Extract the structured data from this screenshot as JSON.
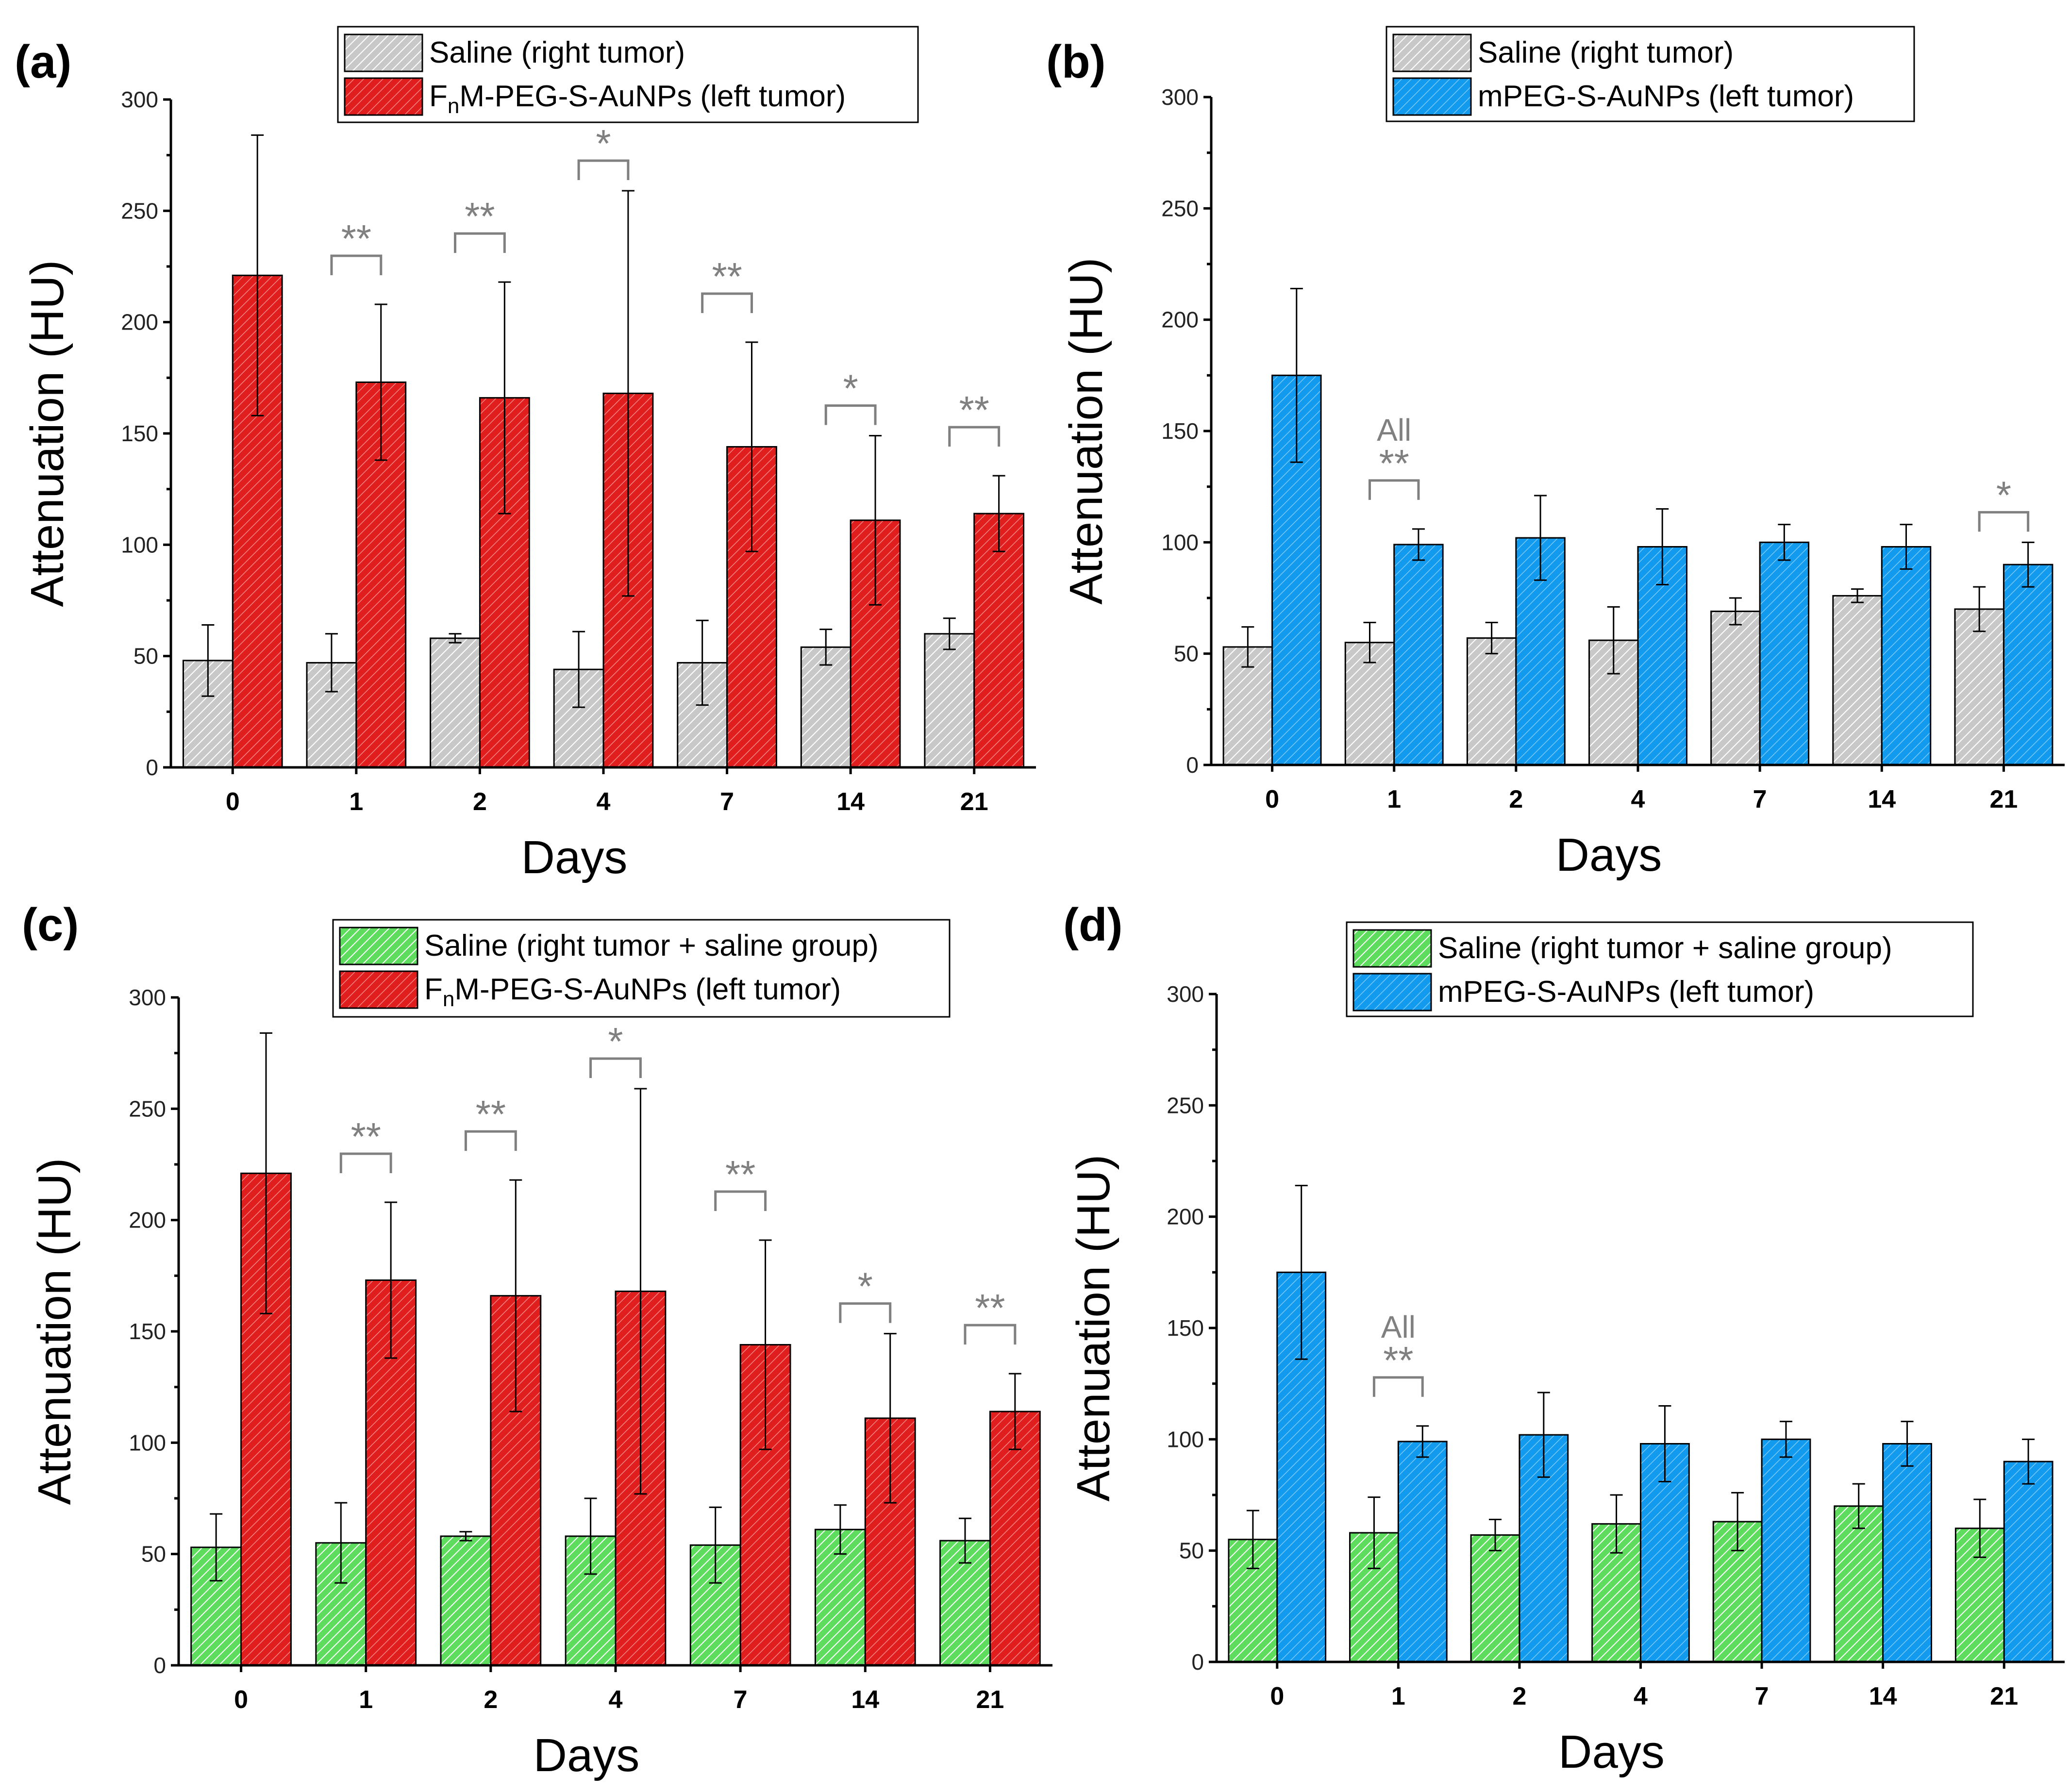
{
  "figure": {
    "description_colors": {
      "saline_gray": "#c8c8c8",
      "saline_green": "#5ddc5d",
      "red": "#e11e1e",
      "blue": "#129aee",
      "sig_gray": "#808080"
    }
  },
  "chart_data": [
    {
      "panel": "(a)",
      "type": "bar",
      "xlabel": "Days",
      "ylabel": "Attenuation (HU)",
      "ylim": [
        0,
        300
      ],
      "yticks": [
        0,
        50,
        100,
        150,
        200,
        250,
        300
      ],
      "categories": [
        "0",
        "1",
        "2",
        "4",
        "7",
        "14",
        "21"
      ],
      "series": [
        {
          "name": "Saline (right tumor)",
          "legend_main": "Saline (right tumor)",
          "legend_sub": "",
          "legend_rest": "",
          "color": "#c8c8c8",
          "pattern": "gray",
          "values": [
            48,
            47,
            58,
            44,
            47,
            54,
            60
          ],
          "errors": [
            16,
            13,
            2,
            17,
            19,
            8,
            7
          ]
        },
        {
          "name": "FnM-PEG-S-AuNPs (left tumor)",
          "legend_main": "F",
          "legend_sub": "n",
          "legend_rest": "M-PEG-S-AuNPs (left tumor)",
          "color": "#e11e1e",
          "pattern": "red",
          "values": [
            221,
            173,
            166,
            168,
            144,
            111,
            114
          ],
          "errors": [
            63,
            35,
            52,
            91,
            47,
            38,
            17
          ]
        }
      ],
      "significance": [
        {
          "category": "1",
          "label": "**"
        },
        {
          "category": "2",
          "label": "**"
        },
        {
          "category": "4",
          "label": "*"
        },
        {
          "category": "7",
          "label": "**"
        },
        {
          "category": "14",
          "label": "*"
        },
        {
          "category": "21",
          "label": "**"
        }
      ],
      "notes": []
    },
    {
      "panel": "(b)",
      "type": "bar",
      "xlabel": "Days",
      "ylabel": "Attenuation (HU)",
      "ylim": [
        0,
        300
      ],
      "yticks": [
        0,
        50,
        100,
        150,
        200,
        250,
        300
      ],
      "categories": [
        "0",
        "1",
        "2",
        "4",
        "7",
        "14",
        "21"
      ],
      "series": [
        {
          "name": "Saline (right tumor)",
          "legend_main": "Saline (right tumor)",
          "legend_sub": "",
          "legend_rest": "",
          "color": "#c8c8c8",
          "pattern": "gray",
          "values": [
            53,
            55,
            57,
            56,
            69,
            76,
            70
          ],
          "errors": [
            9,
            9,
            7,
            15,
            6,
            3,
            10
          ]
        },
        {
          "name": "mPEG-S-AuNPs (left tumor)",
          "legend_main": "mPEG-S-AuNPs (left tumor)",
          "legend_sub": "",
          "legend_rest": "",
          "color": "#129aee",
          "pattern": "blue",
          "values": [
            175,
            99,
            102,
            98,
            100,
            98,
            90
          ],
          "errors": [
            39,
            7,
            19,
            17,
            8,
            10,
            10
          ]
        }
      ],
      "significance": [
        {
          "category": "1",
          "label": "**"
        },
        {
          "category": "21",
          "label": "*"
        }
      ],
      "notes": [
        {
          "category": "1",
          "label": "All"
        }
      ]
    },
    {
      "panel": "(c)",
      "type": "bar",
      "xlabel": "Days",
      "ylabel": "Attenuation (HU)",
      "ylim": [
        0,
        300
      ],
      "yticks": [
        0,
        50,
        100,
        150,
        200,
        250,
        300
      ],
      "categories": [
        "0",
        "1",
        "2",
        "4",
        "7",
        "14",
        "21"
      ],
      "series": [
        {
          "name": "Saline (right tumor + saline group)",
          "legend_main": "Saline (right tumor + saline group)",
          "legend_sub": "",
          "legend_rest": "",
          "color": "#5ddc5d",
          "pattern": "green",
          "values": [
            53,
            55,
            58,
            58,
            54,
            61,
            56
          ],
          "errors": [
            15,
            18,
            2,
            17,
            17,
            11,
            10
          ]
        },
        {
          "name": "FnM-PEG-S-AuNPs (left tumor)",
          "legend_main": "F",
          "legend_sub": "n",
          "legend_rest": "M-PEG-S-AuNPs (left tumor)",
          "color": "#e11e1e",
          "pattern": "red",
          "values": [
            221,
            173,
            166,
            168,
            144,
            111,
            114
          ],
          "errors": [
            63,
            35,
            52,
            91,
            47,
            38,
            17
          ]
        }
      ],
      "significance": [
        {
          "category": "1",
          "label": "**"
        },
        {
          "category": "2",
          "label": "**"
        },
        {
          "category": "4",
          "label": "*"
        },
        {
          "category": "7",
          "label": "**"
        },
        {
          "category": "14",
          "label": "*"
        },
        {
          "category": "21",
          "label": "**"
        }
      ],
      "notes": []
    },
    {
      "panel": "(d)",
      "type": "bar",
      "xlabel": "Days",
      "ylabel": "Attenuation (HU)",
      "ylim": [
        0,
        300
      ],
      "yticks": [
        0,
        50,
        100,
        150,
        200,
        250,
        300
      ],
      "categories": [
        "0",
        "1",
        "2",
        "4",
        "7",
        "14",
        "21"
      ],
      "series": [
        {
          "name": "Saline (right tumor + saline group)",
          "legend_main": "Saline (right tumor + saline group)",
          "legend_sub": "",
          "legend_rest": "",
          "color": "#5ddc5d",
          "pattern": "green",
          "values": [
            55,
            58,
            57,
            62,
            63,
            70,
            60
          ],
          "errors": [
            13,
            16,
            7,
            13,
            13,
            10,
            13
          ]
        },
        {
          "name": "mPEG-S-AuNPs (left tumor)",
          "legend_main": "mPEG-S-AuNPs (left tumor)",
          "legend_sub": "",
          "legend_rest": "",
          "color": "#129aee",
          "pattern": "blue",
          "values": [
            175,
            99,
            102,
            98,
            100,
            98,
            90
          ],
          "errors": [
            39,
            7,
            19,
            17,
            8,
            10,
            10
          ]
        }
      ],
      "significance": [
        {
          "category": "1",
          "label": "**"
        }
      ],
      "notes": [
        {
          "category": "1",
          "label": "All"
        }
      ]
    }
  ]
}
